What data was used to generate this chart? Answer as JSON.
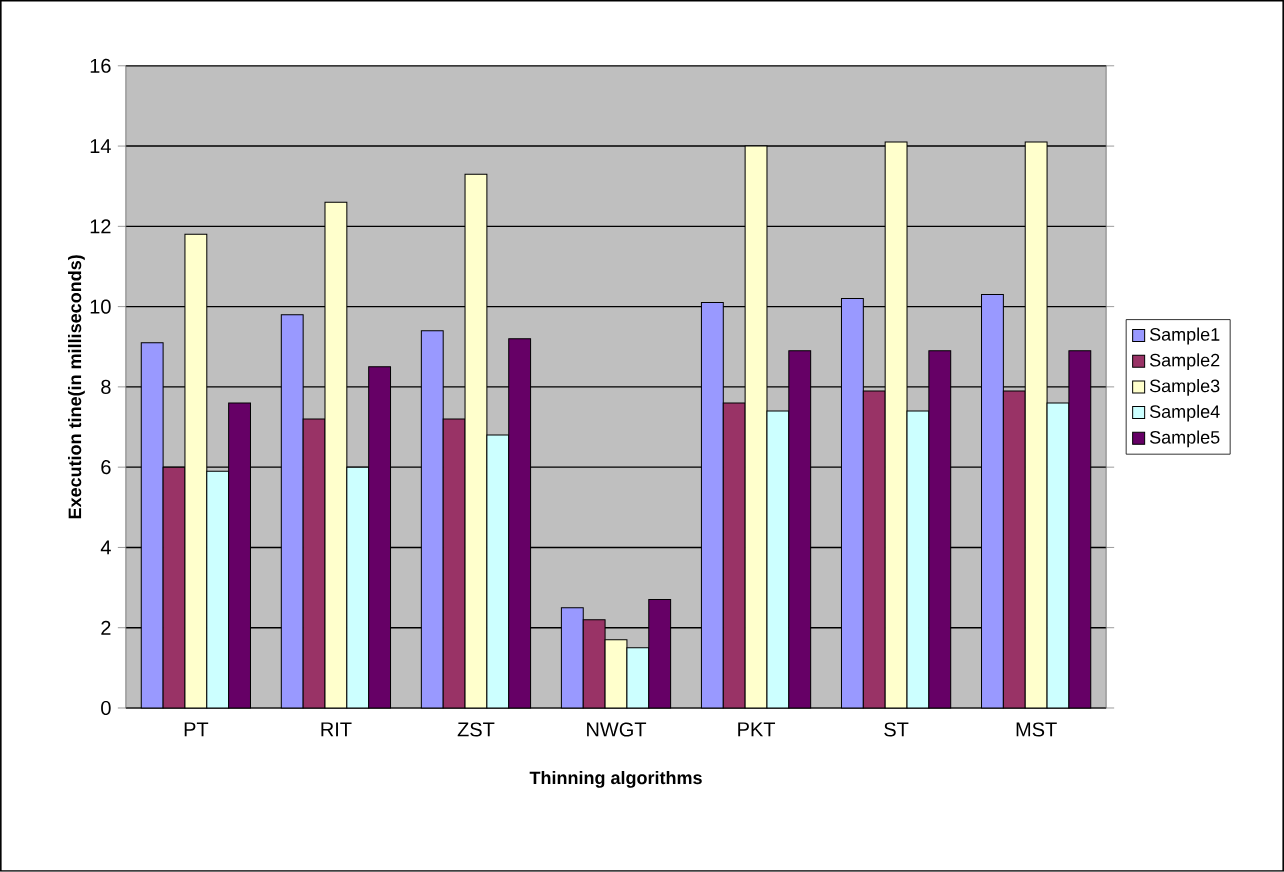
{
  "chart_data": {
    "type": "bar",
    "xlabel": "Thinning algorithms",
    "ylabel": "Execution tine(in milliseconds)",
    "categories": [
      "PT",
      "RIT",
      "ZST",
      "NWGT",
      "PKT",
      "ST",
      "MST"
    ],
    "series": [
      {
        "name": "Sample1",
        "color": "#9999ff",
        "values": [
          9.1,
          9.8,
          9.4,
          2.5,
          10.1,
          10.2,
          10.3
        ]
      },
      {
        "name": "Sample2",
        "color": "#993366",
        "values": [
          6.0,
          7.2,
          7.2,
          2.2,
          7.6,
          7.9,
          7.9
        ]
      },
      {
        "name": "Sample3",
        "color": "#ffffcc",
        "values": [
          11.8,
          12.6,
          13.3,
          1.7,
          14.0,
          14.1,
          14.1
        ]
      },
      {
        "name": "Sample4",
        "color": "#ccffff",
        "values": [
          5.9,
          6.0,
          6.8,
          1.5,
          7.4,
          7.4,
          7.6
        ]
      },
      {
        "name": "Sample5",
        "color": "#660066",
        "values": [
          7.6,
          8.5,
          9.2,
          2.7,
          8.9,
          8.9,
          8.9
        ]
      }
    ],
    "ylim": [
      0,
      16
    ],
    "yticks": [
      0,
      2,
      4,
      6,
      8,
      10,
      12,
      14,
      16
    ],
    "grid": "y",
    "legend": "right"
  }
}
